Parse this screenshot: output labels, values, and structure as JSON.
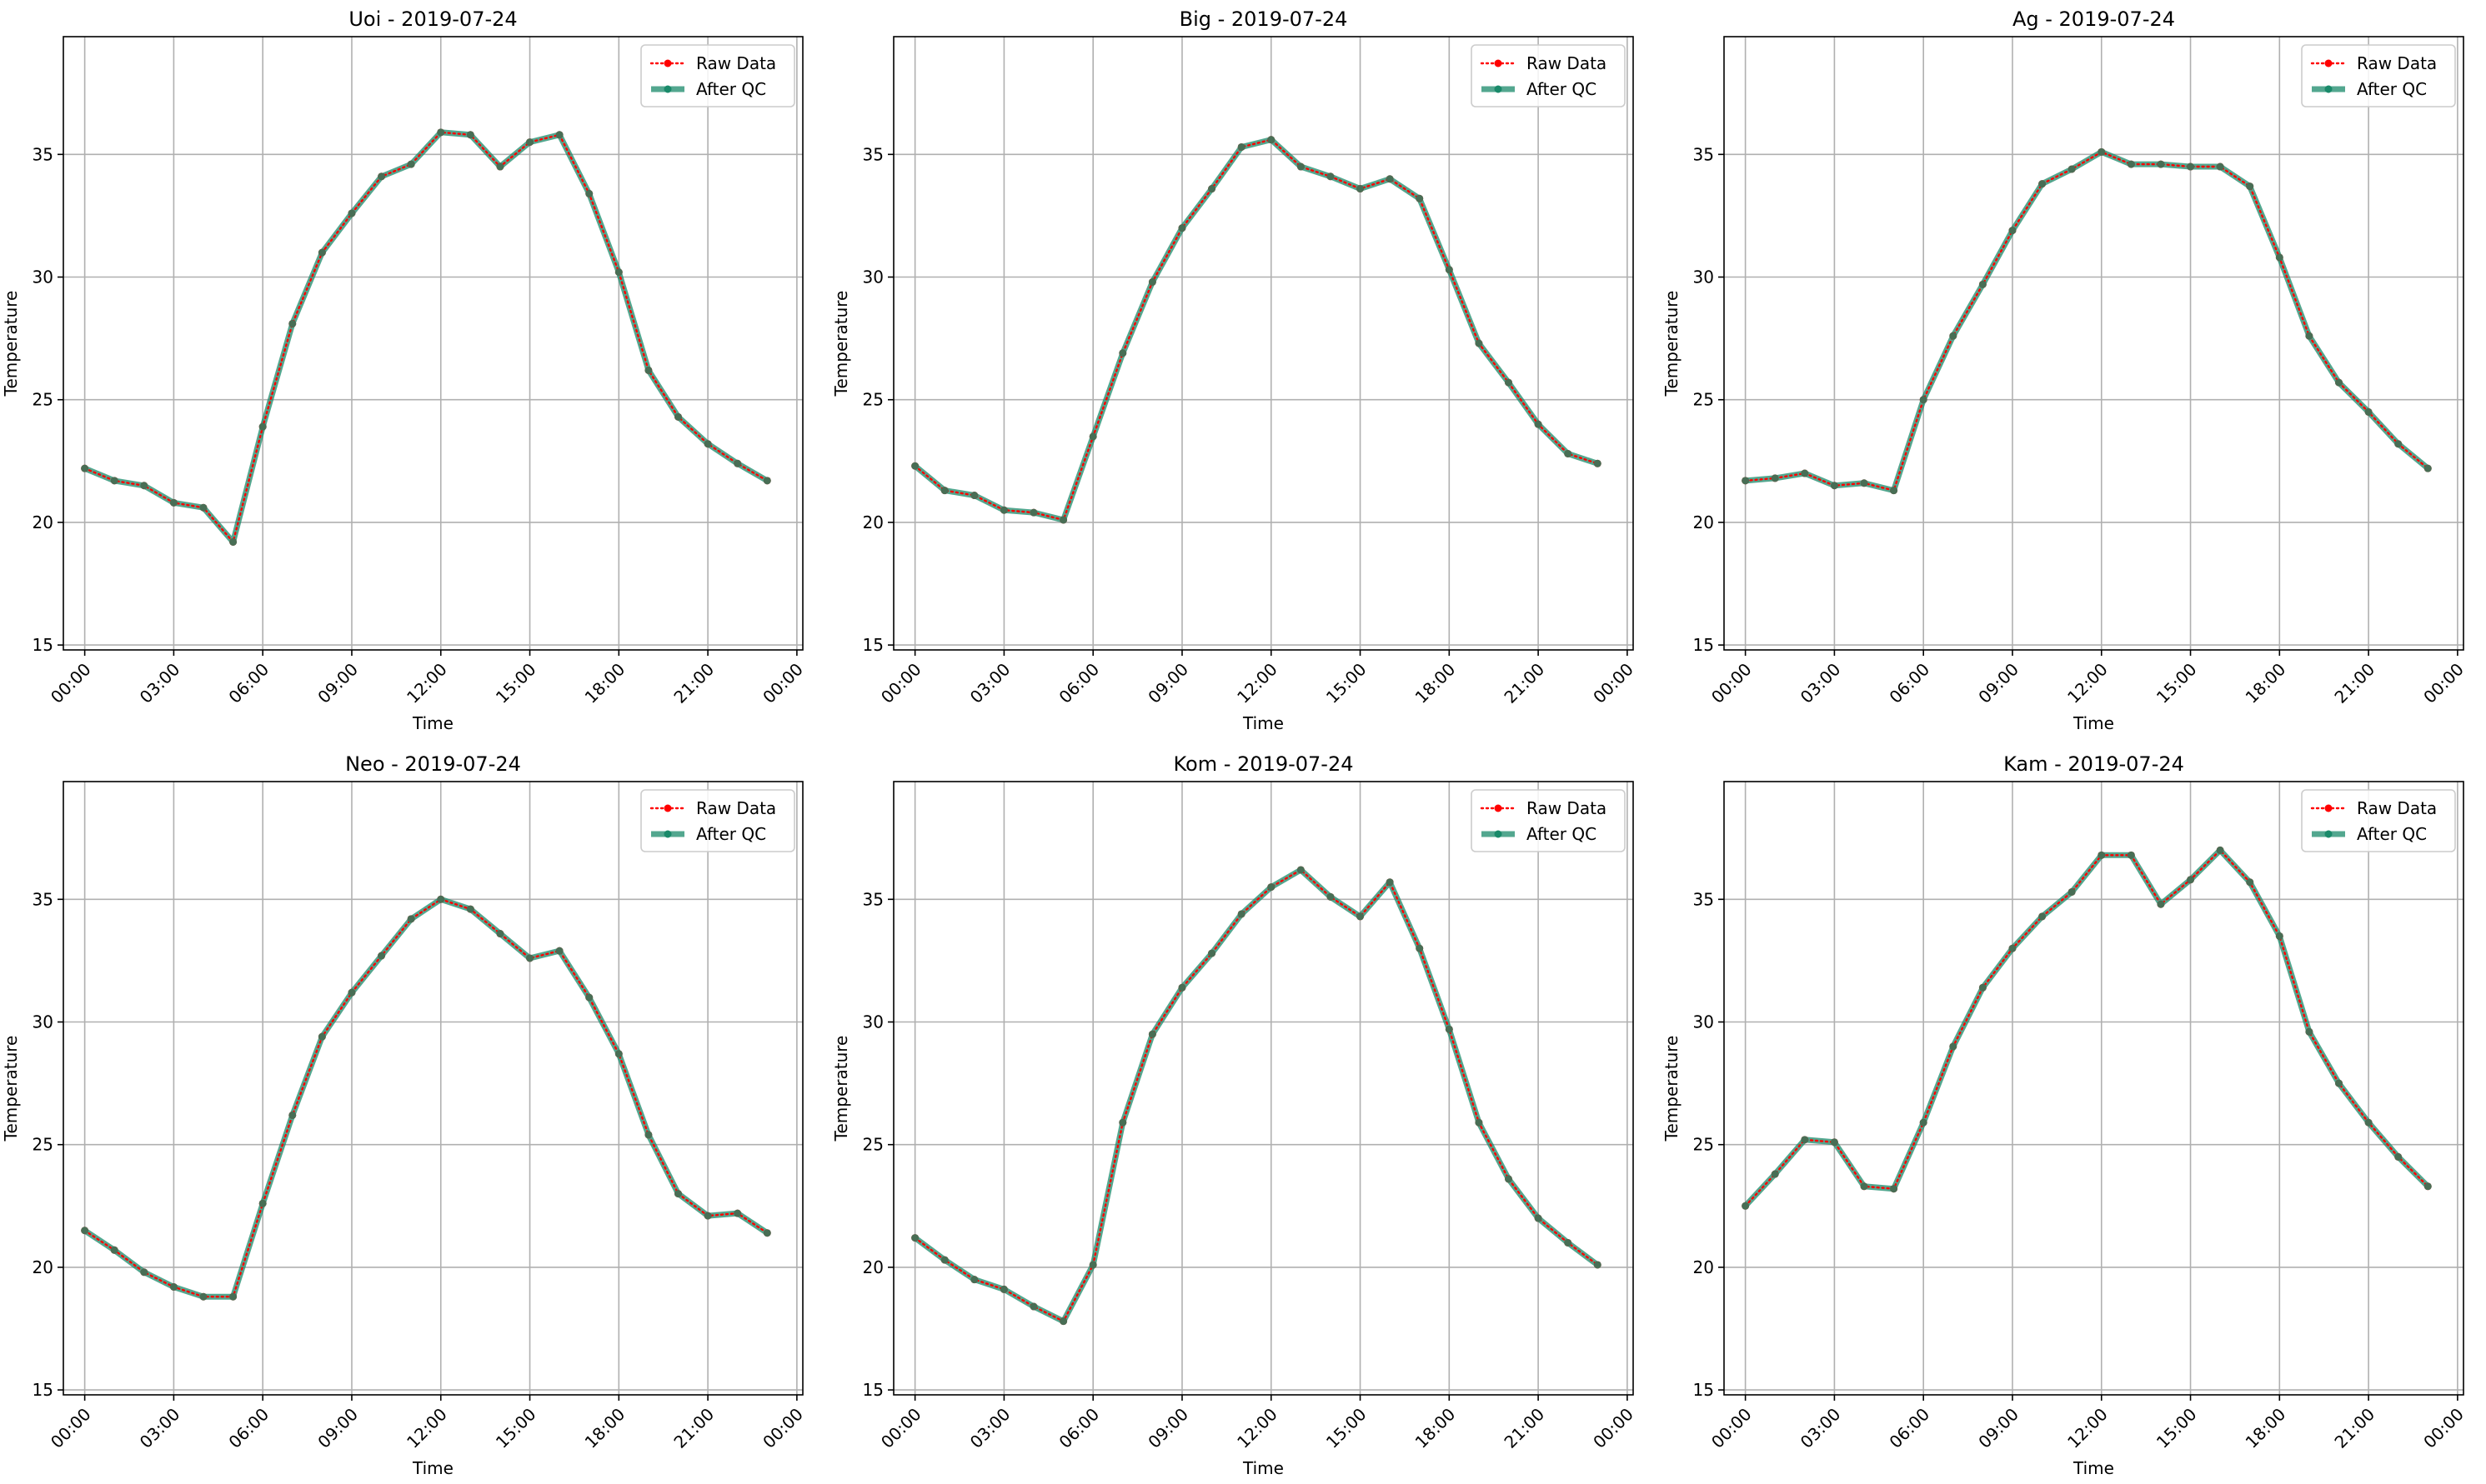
{
  "chart_data": [
    {
      "type": "line",
      "title": "Uoi - 2019-07-24",
      "xlabel": "Time",
      "ylabel": "Temperature",
      "xticks": [
        "00:00",
        "03:00",
        "06:00",
        "09:00",
        "12:00",
        "15:00",
        "18:00",
        "21:00",
        "00:00"
      ],
      "yticks": [
        15,
        20,
        25,
        30,
        35
      ],
      "ylim": [
        14.8,
        39.8
      ],
      "xlim_hours": [
        -0.72,
        24.2
      ],
      "grid": true,
      "legend": {
        "placement": "top-right",
        "entries": [
          "Raw Data",
          "After QC"
        ]
      },
      "x_hours": [
        0,
        1,
        2,
        3,
        4,
        5,
        6,
        7,
        8,
        9,
        10,
        11,
        12,
        13,
        14,
        15,
        16,
        17,
        18,
        19,
        20,
        21,
        22,
        23
      ],
      "series": [
        {
          "name": "Raw Data",
          "values": [
            22.2,
            21.7,
            21.5,
            20.8,
            20.6,
            19.2,
            23.9,
            28.1,
            31.0,
            32.6,
            34.1,
            34.6,
            35.9,
            35.8,
            34.5,
            35.5,
            35.8,
            33.4,
            30.2,
            26.2,
            24.3,
            23.2,
            22.4,
            21.7
          ]
        },
        {
          "name": "After QC",
          "values": [
            22.2,
            21.7,
            21.5,
            20.8,
            20.6,
            19.2,
            23.9,
            28.1,
            31.0,
            32.6,
            34.1,
            34.6,
            35.9,
            35.8,
            34.5,
            35.5,
            35.8,
            33.4,
            30.2,
            26.2,
            24.3,
            23.2,
            22.4,
            21.7
          ]
        }
      ]
    },
    {
      "type": "line",
      "title": "Big - 2019-07-24",
      "xlabel": "Time",
      "ylabel": "Temperature",
      "xticks": [
        "00:00",
        "03:00",
        "06:00",
        "09:00",
        "12:00",
        "15:00",
        "18:00",
        "21:00",
        "00:00"
      ],
      "yticks": [
        15,
        20,
        25,
        30,
        35
      ],
      "ylim": [
        14.8,
        39.8
      ],
      "xlim_hours": [
        -0.72,
        24.2
      ],
      "grid": true,
      "legend": {
        "placement": "top-right",
        "entries": [
          "Raw Data",
          "After QC"
        ]
      },
      "x_hours": [
        0,
        1,
        2,
        3,
        4,
        5,
        6,
        7,
        8,
        9,
        10,
        11,
        12,
        13,
        14,
        15,
        16,
        17,
        18,
        19,
        20,
        21,
        22,
        23
      ],
      "series": [
        {
          "name": "Raw Data",
          "values": [
            22.3,
            21.3,
            21.1,
            20.5,
            20.4,
            20.1,
            23.5,
            26.9,
            29.8,
            32.0,
            33.6,
            35.3,
            35.6,
            34.5,
            34.1,
            33.6,
            34.0,
            33.2,
            30.3,
            27.3,
            25.7,
            24.0,
            22.8,
            22.4
          ]
        },
        {
          "name": "After QC",
          "values": [
            22.3,
            21.3,
            21.1,
            20.5,
            20.4,
            20.1,
            23.5,
            26.9,
            29.8,
            32.0,
            33.6,
            35.3,
            35.6,
            34.5,
            34.1,
            33.6,
            34.0,
            33.2,
            30.3,
            27.3,
            25.7,
            24.0,
            22.8,
            22.4
          ]
        }
      ]
    },
    {
      "type": "line",
      "title": "Ag - 2019-07-24",
      "xlabel": "Time",
      "ylabel": "Temperature",
      "xticks": [
        "00:00",
        "03:00",
        "06:00",
        "09:00",
        "12:00",
        "15:00",
        "18:00",
        "21:00",
        "00:00"
      ],
      "yticks": [
        15,
        20,
        25,
        30,
        35
      ],
      "ylim": [
        14.8,
        39.8
      ],
      "xlim_hours": [
        -0.72,
        24.2
      ],
      "grid": true,
      "legend": {
        "placement": "top-right",
        "entries": [
          "Raw Data",
          "After QC"
        ]
      },
      "x_hours": [
        0,
        1,
        2,
        3,
        4,
        5,
        6,
        7,
        8,
        9,
        10,
        11,
        12,
        13,
        14,
        15,
        16,
        17,
        18,
        19,
        20,
        21,
        22,
        23
      ],
      "series": [
        {
          "name": "Raw Data",
          "values": [
            21.7,
            21.8,
            22.0,
            21.5,
            21.6,
            21.3,
            25.0,
            27.6,
            29.7,
            31.9,
            33.8,
            34.4,
            35.1,
            34.6,
            34.6,
            34.5,
            34.5,
            33.7,
            30.8,
            27.6,
            25.7,
            24.5,
            23.2,
            22.2
          ]
        },
        {
          "name": "After QC",
          "values": [
            21.7,
            21.8,
            22.0,
            21.5,
            21.6,
            21.3,
            25.0,
            27.6,
            29.7,
            31.9,
            33.8,
            34.4,
            35.1,
            34.6,
            34.6,
            34.5,
            34.5,
            33.7,
            30.8,
            27.6,
            25.7,
            24.5,
            23.2,
            22.2
          ]
        }
      ]
    },
    {
      "type": "line",
      "title": "Neo - 2019-07-24",
      "xlabel": "Time",
      "ylabel": "Temperature",
      "xticks": [
        "00:00",
        "03:00",
        "06:00",
        "09:00",
        "12:00",
        "15:00",
        "18:00",
        "21:00",
        "00:00"
      ],
      "yticks": [
        15,
        20,
        25,
        30,
        35
      ],
      "ylim": [
        14.8,
        39.8
      ],
      "xlim_hours": [
        -0.72,
        24.2
      ],
      "grid": true,
      "legend": {
        "placement": "top-right",
        "entries": [
          "Raw Data",
          "After QC"
        ]
      },
      "x_hours": [
        0,
        1,
        2,
        3,
        4,
        5,
        6,
        7,
        8,
        9,
        10,
        11,
        12,
        13,
        14,
        15,
        16,
        17,
        18,
        19,
        20,
        21,
        22,
        23
      ],
      "series": [
        {
          "name": "Raw Data",
          "values": [
            21.5,
            20.7,
            19.8,
            19.2,
            18.8,
            18.8,
            22.6,
            26.2,
            29.4,
            31.2,
            32.7,
            34.2,
            35.0,
            34.6,
            33.6,
            32.6,
            32.9,
            31.0,
            28.7,
            25.4,
            23.0,
            22.1,
            22.2,
            21.4
          ]
        },
        {
          "name": "After QC",
          "values": [
            21.5,
            20.7,
            19.8,
            19.2,
            18.8,
            18.8,
            22.6,
            26.2,
            29.4,
            31.2,
            32.7,
            34.2,
            35.0,
            34.6,
            33.6,
            32.6,
            32.9,
            31.0,
            28.7,
            25.4,
            23.0,
            22.1,
            22.2,
            21.4
          ]
        }
      ]
    },
    {
      "type": "line",
      "title": "Kom - 2019-07-24",
      "xlabel": "Time",
      "ylabel": "Temperature",
      "xticks": [
        "00:00",
        "03:00",
        "06:00",
        "09:00",
        "12:00",
        "15:00",
        "18:00",
        "21:00",
        "00:00"
      ],
      "yticks": [
        15,
        20,
        25,
        30,
        35
      ],
      "ylim": [
        14.8,
        39.8
      ],
      "xlim_hours": [
        -0.72,
        24.2
      ],
      "grid": true,
      "legend": {
        "placement": "top-right",
        "entries": [
          "Raw Data",
          "After QC"
        ]
      },
      "x_hours": [
        0,
        1,
        2,
        3,
        4,
        5,
        6,
        7,
        8,
        9,
        10,
        11,
        12,
        13,
        14,
        15,
        16,
        17,
        18,
        19,
        20,
        21,
        22,
        23
      ],
      "series": [
        {
          "name": "Raw Data",
          "values": [
            21.2,
            20.3,
            19.5,
            19.1,
            18.4,
            17.8,
            20.1,
            25.9,
            29.5,
            31.4,
            32.8,
            34.4,
            35.5,
            36.2,
            35.1,
            34.3,
            35.7,
            33.0,
            29.7,
            25.9,
            23.6,
            22.0,
            21.0,
            20.1
          ]
        },
        {
          "name": "After QC",
          "values": [
            21.2,
            20.3,
            19.5,
            19.1,
            18.4,
            17.8,
            20.1,
            25.9,
            29.5,
            31.4,
            32.8,
            34.4,
            35.5,
            36.2,
            35.1,
            34.3,
            35.7,
            33.0,
            29.7,
            25.9,
            23.6,
            22.0,
            21.0,
            20.1
          ]
        }
      ]
    },
    {
      "type": "line",
      "title": "Kam - 2019-07-24",
      "xlabel": "Time",
      "ylabel": "Temperature",
      "xticks": [
        "00:00",
        "03:00",
        "06:00",
        "09:00",
        "12:00",
        "15:00",
        "18:00",
        "21:00",
        "00:00"
      ],
      "yticks": [
        15,
        20,
        25,
        30,
        35
      ],
      "ylim": [
        14.8,
        39.8
      ],
      "xlim_hours": [
        -0.72,
        24.2
      ],
      "grid": true,
      "legend": {
        "placement": "top-right",
        "entries": [
          "Raw Data",
          "After QC"
        ]
      },
      "x_hours": [
        0,
        1,
        2,
        3,
        4,
        5,
        6,
        7,
        8,
        9,
        10,
        11,
        12,
        13,
        14,
        15,
        16,
        17,
        18,
        19,
        20,
        21,
        22,
        23
      ],
      "series": [
        {
          "name": "Raw Data",
          "values": [
            22.5,
            23.8,
            25.2,
            25.1,
            23.3,
            23.2,
            25.9,
            29.0,
            31.4,
            33.0,
            34.3,
            35.3,
            36.8,
            36.8,
            34.8,
            35.8,
            37.0,
            35.7,
            33.5,
            29.6,
            27.5,
            25.9,
            24.5,
            23.3
          ]
        },
        {
          "name": "After QC",
          "values": [
            22.5,
            23.8,
            25.2,
            25.1,
            23.3,
            23.2,
            25.9,
            29.0,
            31.4,
            33.0,
            34.3,
            35.3,
            36.8,
            36.8,
            34.8,
            35.8,
            37.0,
            35.7,
            33.5,
            29.6,
            27.5,
            25.9,
            24.5,
            23.3
          ]
        }
      ]
    }
  ],
  "colors": {
    "raw_data": "#ff0000",
    "after_qc": "#1a8a6a",
    "grid": "#b0b0b0",
    "axes": "#000000"
  }
}
